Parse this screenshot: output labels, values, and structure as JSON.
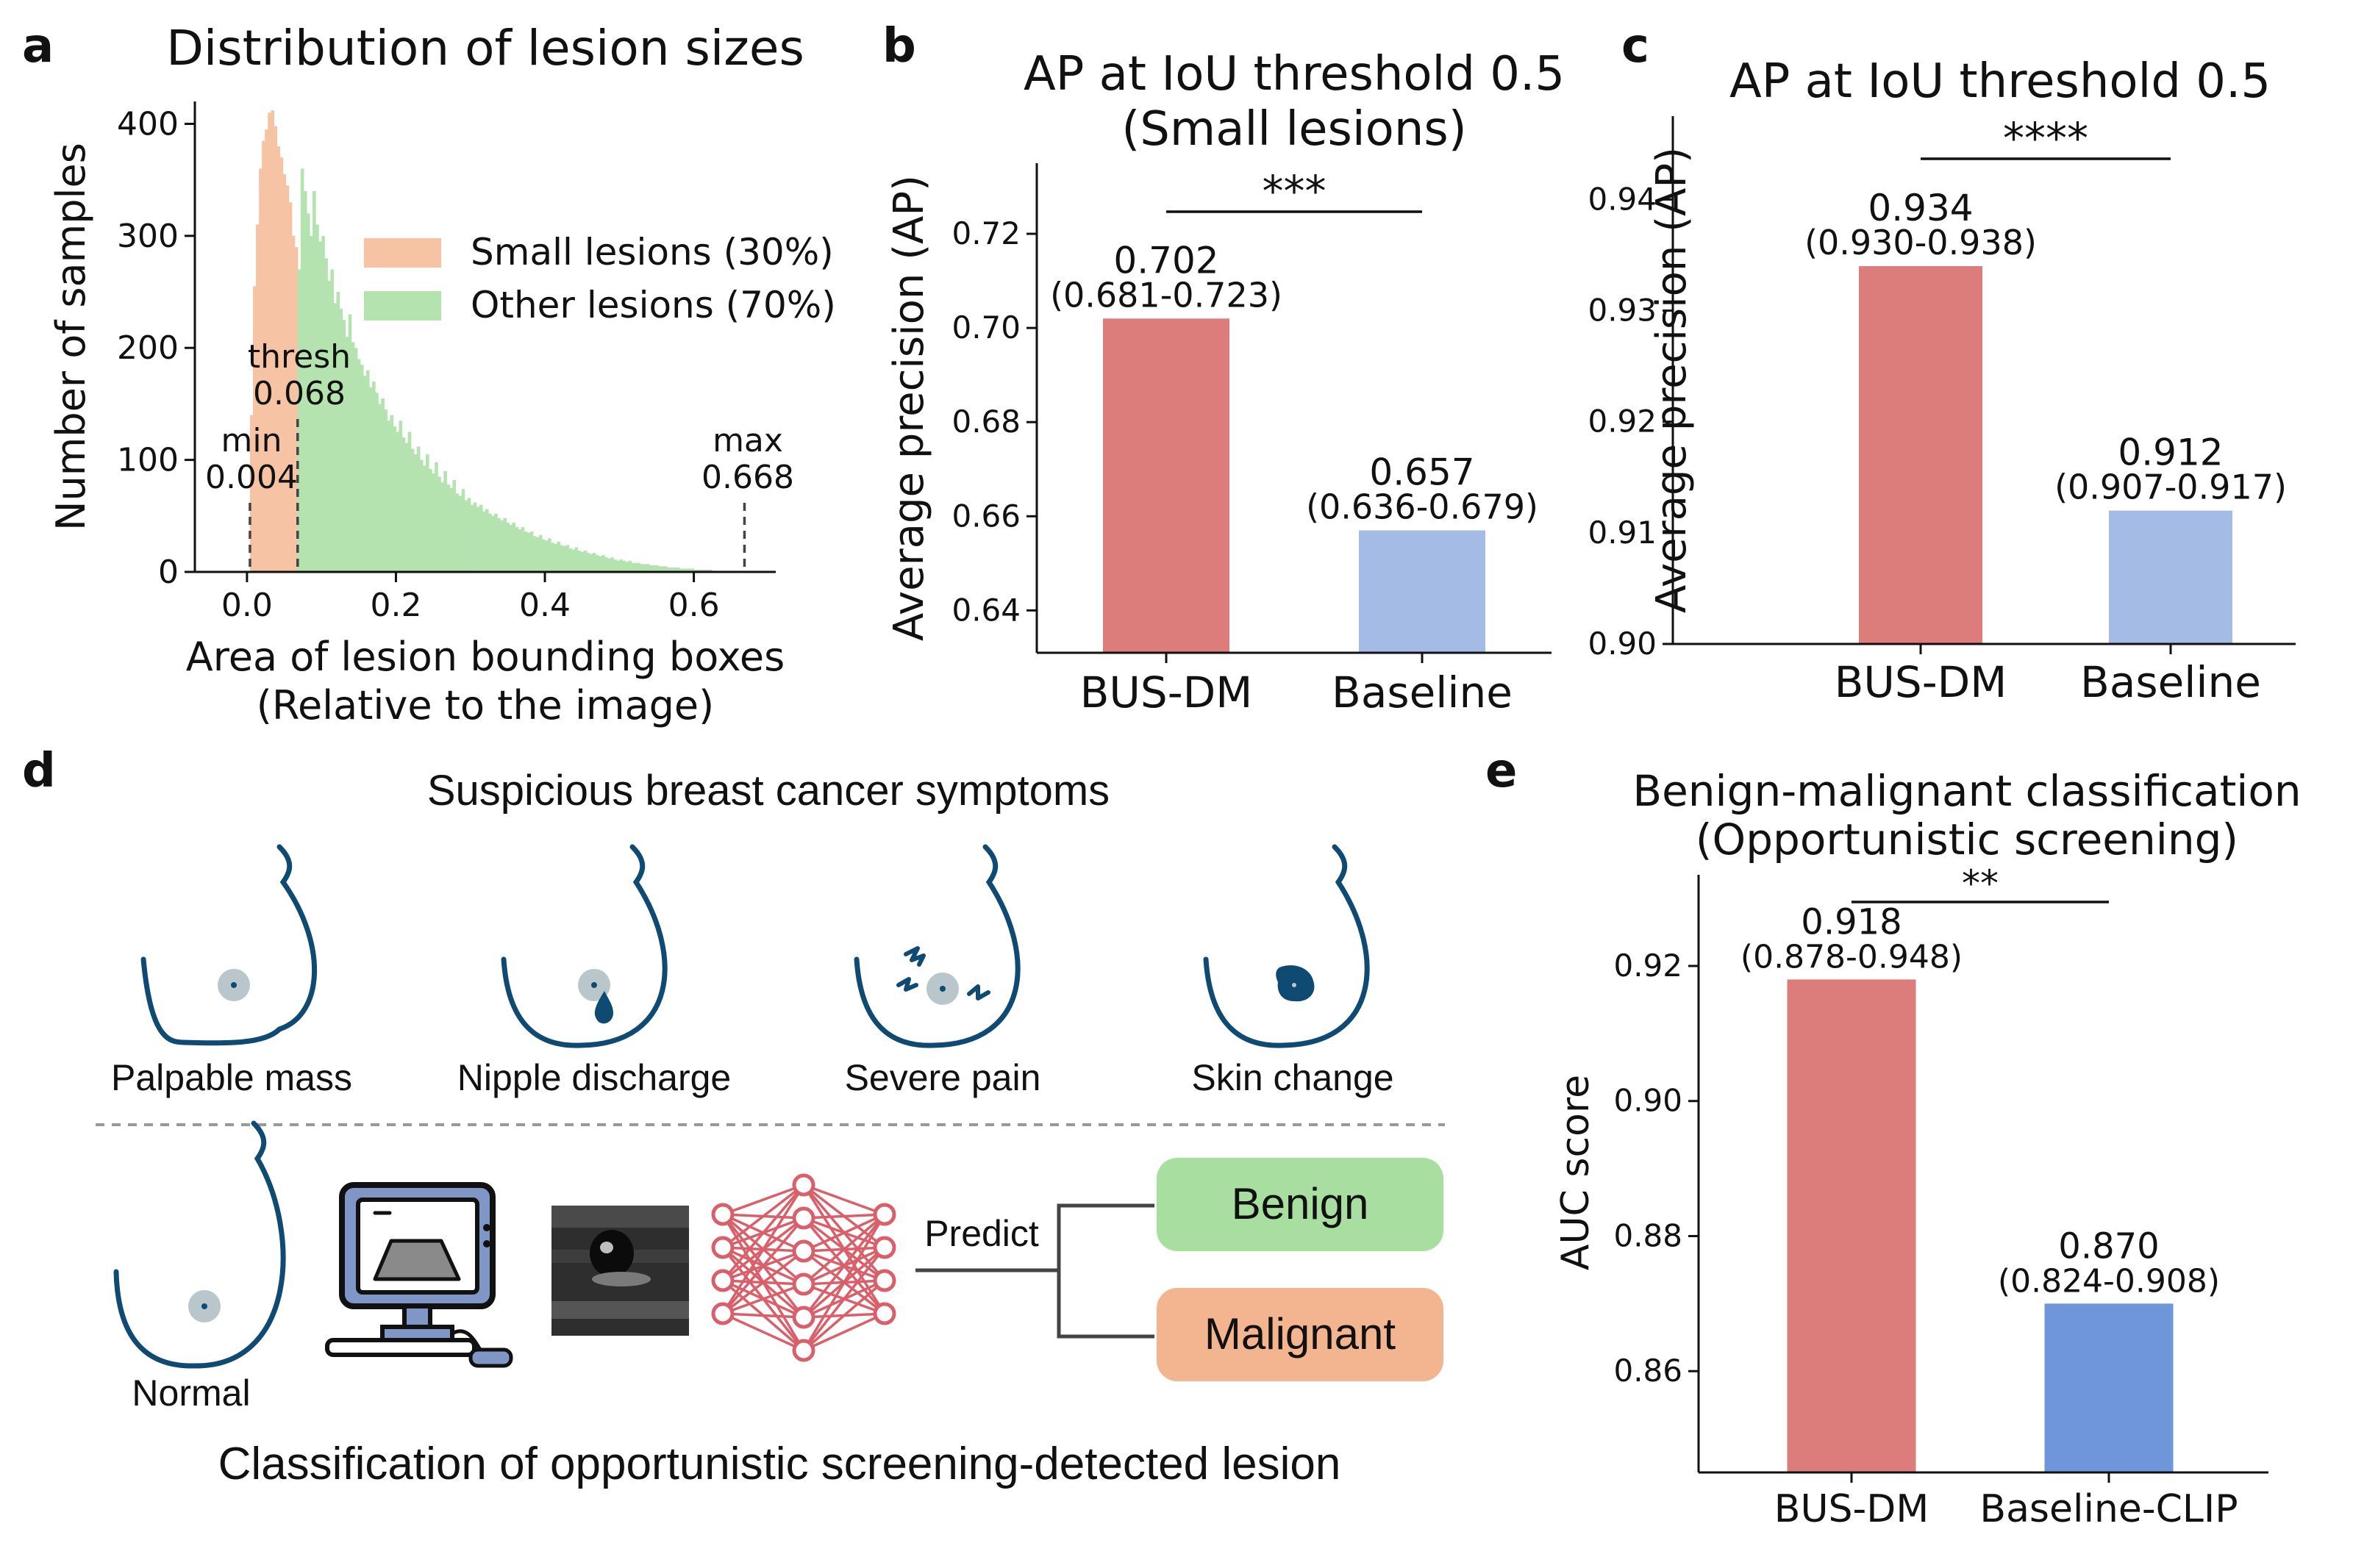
{
  "panel_letters": [
    "a",
    "b",
    "c",
    "d",
    "e"
  ],
  "chart_data": [
    {
      "id": "a",
      "type": "histogram",
      "title": "Distribution of lesion sizes",
      "xlabel_lines": [
        "Area of lesion bounding boxes",
        "(Relative to the image)"
      ],
      "ylabel": "Number of samples",
      "xlim": [
        -0.07,
        0.71
      ],
      "ylim": [
        0,
        420
      ],
      "xticks": [
        0.0,
        0.2,
        0.4,
        0.6
      ],
      "xtick_labels": [
        "0.0",
        "0.2",
        "0.4",
        "0.6"
      ],
      "yticks": [
        0,
        100,
        200,
        300,
        400
      ],
      "ytick_labels": [
        "0",
        "100",
        "200",
        "300",
        "400"
      ],
      "bin_start": 0.004,
      "bin_width": 0.004,
      "threshold": 0.068,
      "counts": [
        140,
        255,
        310,
        360,
        385,
        395,
        410,
        412,
        398,
        380,
        370,
        355,
        345,
        330,
        300,
        290,
        270,
        360,
        340,
        320,
        300,
        340,
        310,
        295,
        300,
        280,
        260,
        270,
        240,
        250,
        235,
        225,
        210,
        230,
        205,
        200,
        190,
        185,
        175,
        180,
        165,
        170,
        160,
        150,
        155,
        145,
        135,
        140,
        130,
        125,
        135,
        120,
        115,
        125,
        110,
        105,
        112,
        100,
        95,
        105,
        92,
        88,
        98,
        85,
        80,
        90,
        78,
        75,
        82,
        70,
        68,
        74,
        64,
        66,
        60,
        62,
        58,
        60,
        54,
        56,
        52,
        50,
        52,
        48,
        46,
        48,
        44,
        42,
        44,
        40,
        38,
        40,
        36,
        35,
        36,
        32,
        31,
        33,
        29,
        28,
        30,
        26,
        25,
        27,
        24,
        23,
        24,
        21,
        20,
        22,
        19,
        18,
        19,
        17,
        16,
        17,
        15,
        14,
        15,
        13,
        12,
        13,
        11,
        10,
        11,
        10,
        9,
        10,
        8,
        8,
        8,
        7,
        7,
        7,
        6,
        6,
        6,
        5,
        5,
        5,
        4,
        4,
        4,
        4,
        3,
        3,
        3,
        3,
        3,
        2,
        2,
        2,
        2,
        2,
        2,
        1,
        1,
        1,
        1,
        1,
        1,
        1,
        1,
        1,
        1,
        1
      ],
      "series": [
        {
          "name": "Small lesions (30%)",
          "color": "#f6c3a4"
        },
        {
          "name": "Other lesions (70%)",
          "color": "#b5e3b0"
        }
      ],
      "legend_position": "upper right",
      "vlines": [
        {
          "x": 0.004,
          "label_lines": [
            "min",
            "0.004"
          ]
        },
        {
          "x": 0.068,
          "label_lines": [
            "thresh",
            "0.068"
          ]
        },
        {
          "x": 0.668,
          "label_lines": [
            "max",
            "0.668"
          ]
        }
      ]
    },
    {
      "id": "b",
      "type": "bar",
      "title_lines": [
        "AP at IoU threshold 0.5",
        "(Small lesions)"
      ],
      "ylabel": "Average precision (AP)",
      "categories": [
        "BUS-DM",
        "Baseline"
      ],
      "values": [
        0.702,
        0.657
      ],
      "value_labels": [
        "0.702",
        "0.657"
      ],
      "ci_labels": [
        "(0.681-0.723)",
        "(0.636-0.679)"
      ],
      "colors": [
        "#dd7d7b",
        "#a3bbe5"
      ],
      "ylim": [
        0.631,
        0.735
      ],
      "yticks": [
        0.64,
        0.66,
        0.68,
        0.7,
        0.72
      ],
      "ytick_labels": [
        "0.64",
        "0.66",
        "0.68",
        "0.70",
        "0.72"
      ],
      "significance": "***"
    },
    {
      "id": "c",
      "type": "bar",
      "title_lines": [
        "AP at IoU threshold 0.5"
      ],
      "ylabel": "Average precision (AP)",
      "categories": [
        "BUS-DM",
        "Baseline"
      ],
      "values": [
        0.934,
        0.912
      ],
      "value_labels": [
        "0.934",
        "0.912"
      ],
      "ci_labels": [
        "(0.930-0.938)",
        "(0.907-0.917)"
      ],
      "colors": [
        "#dd7d7b",
        "#a3bbe5"
      ],
      "ylim": [
        0.9,
        0.9475
      ],
      "yticks": [
        0.9,
        0.91,
        0.92,
        0.93,
        0.94
      ],
      "ytick_labels": [
        "0.90",
        "0.91",
        "0.92",
        "0.93",
        "0.94"
      ],
      "significance": "****"
    },
    {
      "id": "e",
      "type": "bar",
      "title_lines": [
        "Benign-malignant classification",
        "(Opportunistic screening)"
      ],
      "ylabel": "AUC score",
      "categories": [
        "BUS-DM",
        "Baseline-CLIP"
      ],
      "values": [
        0.918,
        0.87
      ],
      "value_labels": [
        "0.918",
        "0.870"
      ],
      "ci_labels": [
        "(0.878-0.948)",
        "(0.824-0.908)"
      ],
      "colors": [
        "#dd7d7b",
        "#6f96db"
      ],
      "ylim": [
        0.845,
        0.9335
      ],
      "yticks": [
        0.86,
        0.88,
        0.9,
        0.92
      ],
      "ytick_labels": [
        "0.86",
        "0.88",
        "0.90",
        "0.92"
      ],
      "significance": "**"
    }
  ],
  "diagram": {
    "title": "Suspicious breast cancer symptoms",
    "symptoms": [
      "Palpable mass",
      "Nipple discharge",
      "Severe pain",
      "Skin change"
    ],
    "normal_label": "Normal",
    "predict_label": "Predict",
    "outputs": [
      {
        "label": "Benign",
        "color": "#a8dfa1"
      },
      {
        "label": "Malignant",
        "color": "#f3b58f"
      }
    ],
    "caption": "Classification of opportunistic screening-detected lesion",
    "icons": [
      "breast-outline-icon",
      "ultrasound-machine-icon",
      "ultrasound-image-icon",
      "neural-network-icon"
    ],
    "colors": {
      "outline": "#0f4a73",
      "lesion": "#b9c7cc",
      "network": "#d9606a",
      "machine": "#7f96c6"
    }
  }
}
